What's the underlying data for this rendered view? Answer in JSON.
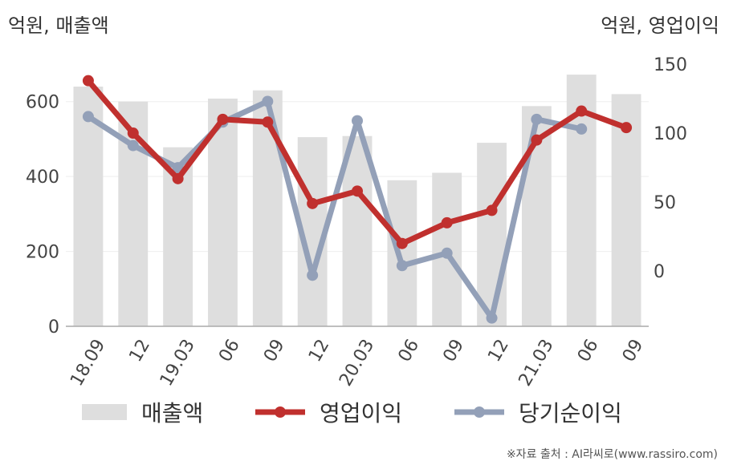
{
  "unit_left": "억원, 매출액",
  "unit_right": "억원, 영업이익",
  "source": "※자료 출처 : AI라씨로(www.rassiro.com)",
  "colors": {
    "bars": "#dedede",
    "operating_profit": "#c0302e",
    "net_income": "#93a0b8",
    "axis": "#aaaaaa",
    "grid": "#eeeeee"
  },
  "chart_data": {
    "type": "bar",
    "categories": [
      "18.09",
      "12",
      "19.03",
      "06",
      "09",
      "12",
      "20.03",
      "06",
      "09",
      "12",
      "21.03",
      "06",
      "09"
    ],
    "series": [
      {
        "name": "매출액",
        "type": "bar",
        "axis": "left",
        "values": [
          640,
          600,
          478,
          608,
          630,
          505,
          508,
          390,
          410,
          490,
          588,
          672,
          620
        ]
      },
      {
        "name": "영업이익",
        "type": "line",
        "axis": "right",
        "values": [
          138,
          100,
          67,
          110,
          108,
          49,
          58,
          20,
          35,
          44,
          95,
          116,
          104
        ]
      },
      {
        "name": "당기순이익",
        "type": "line",
        "axis": "right",
        "values": [
          112,
          91,
          75,
          108,
          123,
          -3,
          109,
          4,
          13,
          -34,
          110,
          103,
          null
        ]
      }
    ],
    "yleft": {
      "ticks": [
        0,
        200,
        400,
        600
      ],
      "range": [
        0,
        700
      ]
    },
    "yright": {
      "ticks": [
        0,
        50,
        100,
        150
      ],
      "range": [
        -40,
        150
      ]
    },
    "legend": "bottom",
    "grid": true
  }
}
